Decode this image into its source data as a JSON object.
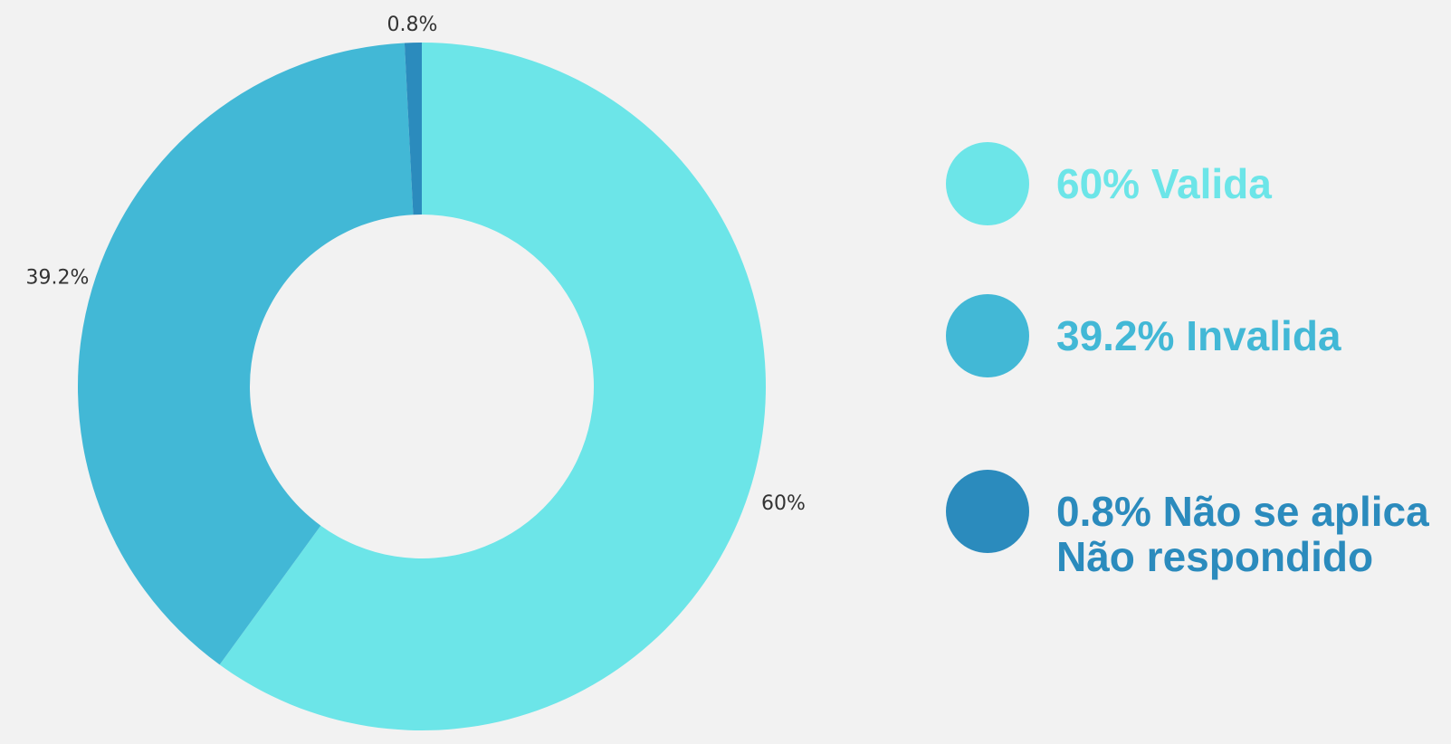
{
  "chart_data": {
    "type": "donut",
    "categories": [
      "60% Valida",
      "39.2% Invalida",
      "0.8% Não se aplica\nNão respondido"
    ],
    "values": [
      60,
      39.2,
      0.8
    ],
    "value_labels": [
      "60%",
      "39.2%",
      "0.8%"
    ],
    "colors": [
      "#6ce5e8",
      "#42b8d6",
      "#2b8bbd"
    ]
  }
}
